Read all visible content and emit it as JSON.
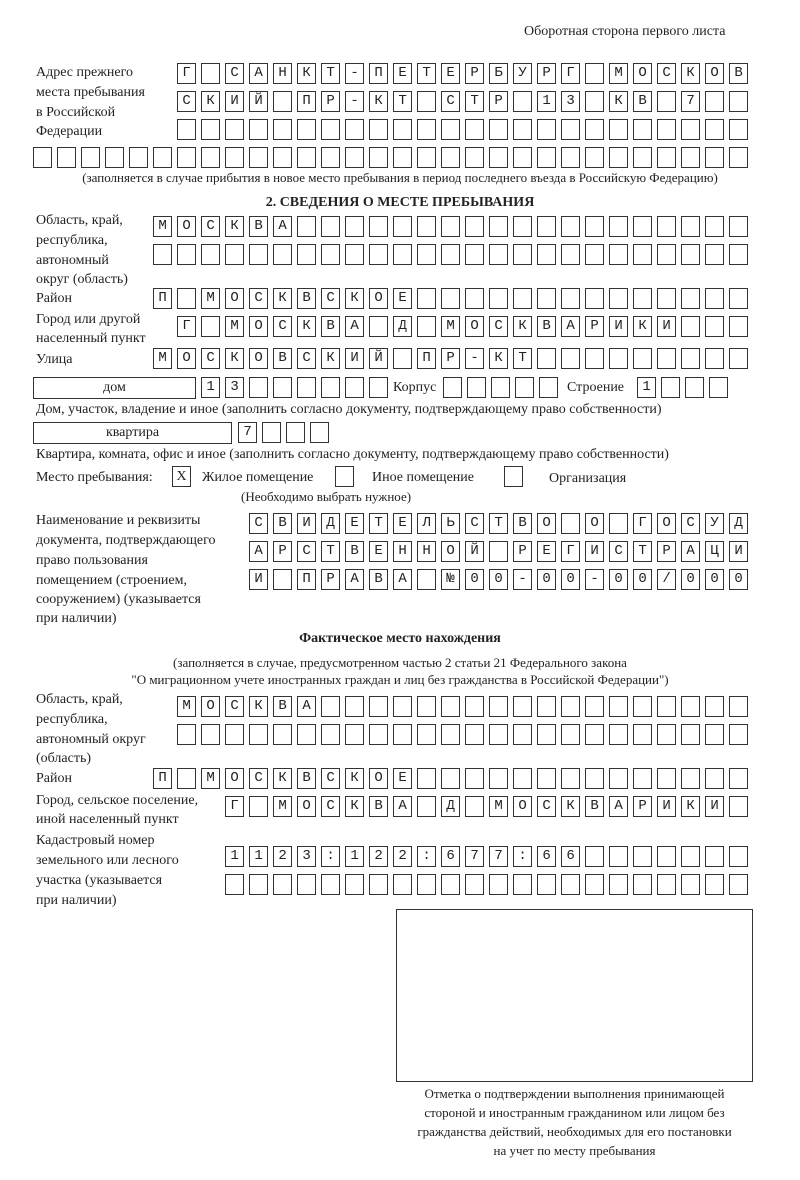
{
  "page_header": "Оборотная сторона первого листа",
  "prev_address": {
    "label": [
      "Адрес прежнего",
      "места пребывания",
      "в Российской",
      "Федерации"
    ],
    "rows": [
      "Г САНКТ-ПЕТЕРБУРГ МОСКОВ",
      "СКИЙ ПР-КТ СТР 13 КВ 7",
      "",
      ""
    ],
    "note": "(заполняется в случае прибытия в новое место пребывания в период последнего въезда в Российскую Федерацию)"
  },
  "section2": {
    "title": "2. СВЕДЕНИЯ О МЕСТЕ ПРЕБЫВАНИЯ",
    "region_label": [
      "Область, край,",
      "республика,",
      "автономный",
      "округ (область)"
    ],
    "region_rows": [
      "МОСКВА",
      ""
    ],
    "district_label": "Район",
    "district": "П МОСКВСКОЕ",
    "city_label": [
      "Город или другой",
      "населенный пункт"
    ],
    "city": "Г МОСКВА Д МОСКВАРИКИ",
    "street_label": "Улица",
    "street": "МОСКОВСКИЙ ПР-КТ",
    "house_type": "дом",
    "house": "13",
    "korpus_label": "Корпус",
    "korpus": "",
    "building_label": "Строение",
    "building": "1",
    "house_note": "Дом, участок, владение и иное (заполнить согласно документу, подтверждающему право собственности)",
    "apt_type": "квартира",
    "apt": "7",
    "apt_note": "Квартира, комната, офис и иное (заполнить согласно документу, подтверждающему право собственности)",
    "stay_label": "Место пребывания:",
    "options": [
      {
        "label": "Жилое помещение",
        "mark": "X"
      },
      {
        "label": "Иное помещение",
        "mark": ""
      },
      {
        "label": "Организация",
        "mark": ""
      }
    ],
    "choose_note": "(Необходимо выбрать нужное)",
    "doc_label": [
      "Наименование и реквизиты",
      "документа, подтверждающего",
      "право пользования",
      "помещением (строением,",
      "сооружением) (указывается",
      "при наличии)"
    ],
    "doc_rows": [
      "СВИДЕТЕЛЬСТВО О ГОСУД",
      "АРСТВЕННОЙ РЕГИСТРАЦИ",
      "И ПРАВА №00-00-00/000"
    ]
  },
  "actual": {
    "title": "Фактическое место нахождения",
    "subtitle": [
      "(заполняется в случае, предусмотренном частью 2 статьи 21 Федерального закона",
      "\"О миграционном учете иностранных граждан и лиц без гражданства в Российской Федерации\")"
    ],
    "region_label": [
      "Область, край,",
      "республика,",
      "автономный округ",
      "(область)"
    ],
    "region_rows": [
      "МОСКВА",
      ""
    ],
    "district_label": "Район",
    "district": "П МОСКВСКОЕ",
    "city_label": [
      "Город, сельское поселение,",
      "иной населенный пункт"
    ],
    "city": "Г МОСКВА Д МОСКВАРИКИ",
    "cadastre_label": [
      "Кадастровый номер",
      "земельного или лесного",
      "участка (указывается",
      "при наличии)"
    ],
    "cadastre_rows": [
      "1123:122:677:66",
      ""
    ]
  },
  "stamp_caption": [
    "Отметка о подтверждении выполнения принимающей",
    "стороной и иностранным гражданином или лицом без",
    "гражданства действий, необходимых для его постановки",
    "на учет по месту пребывания"
  ]
}
